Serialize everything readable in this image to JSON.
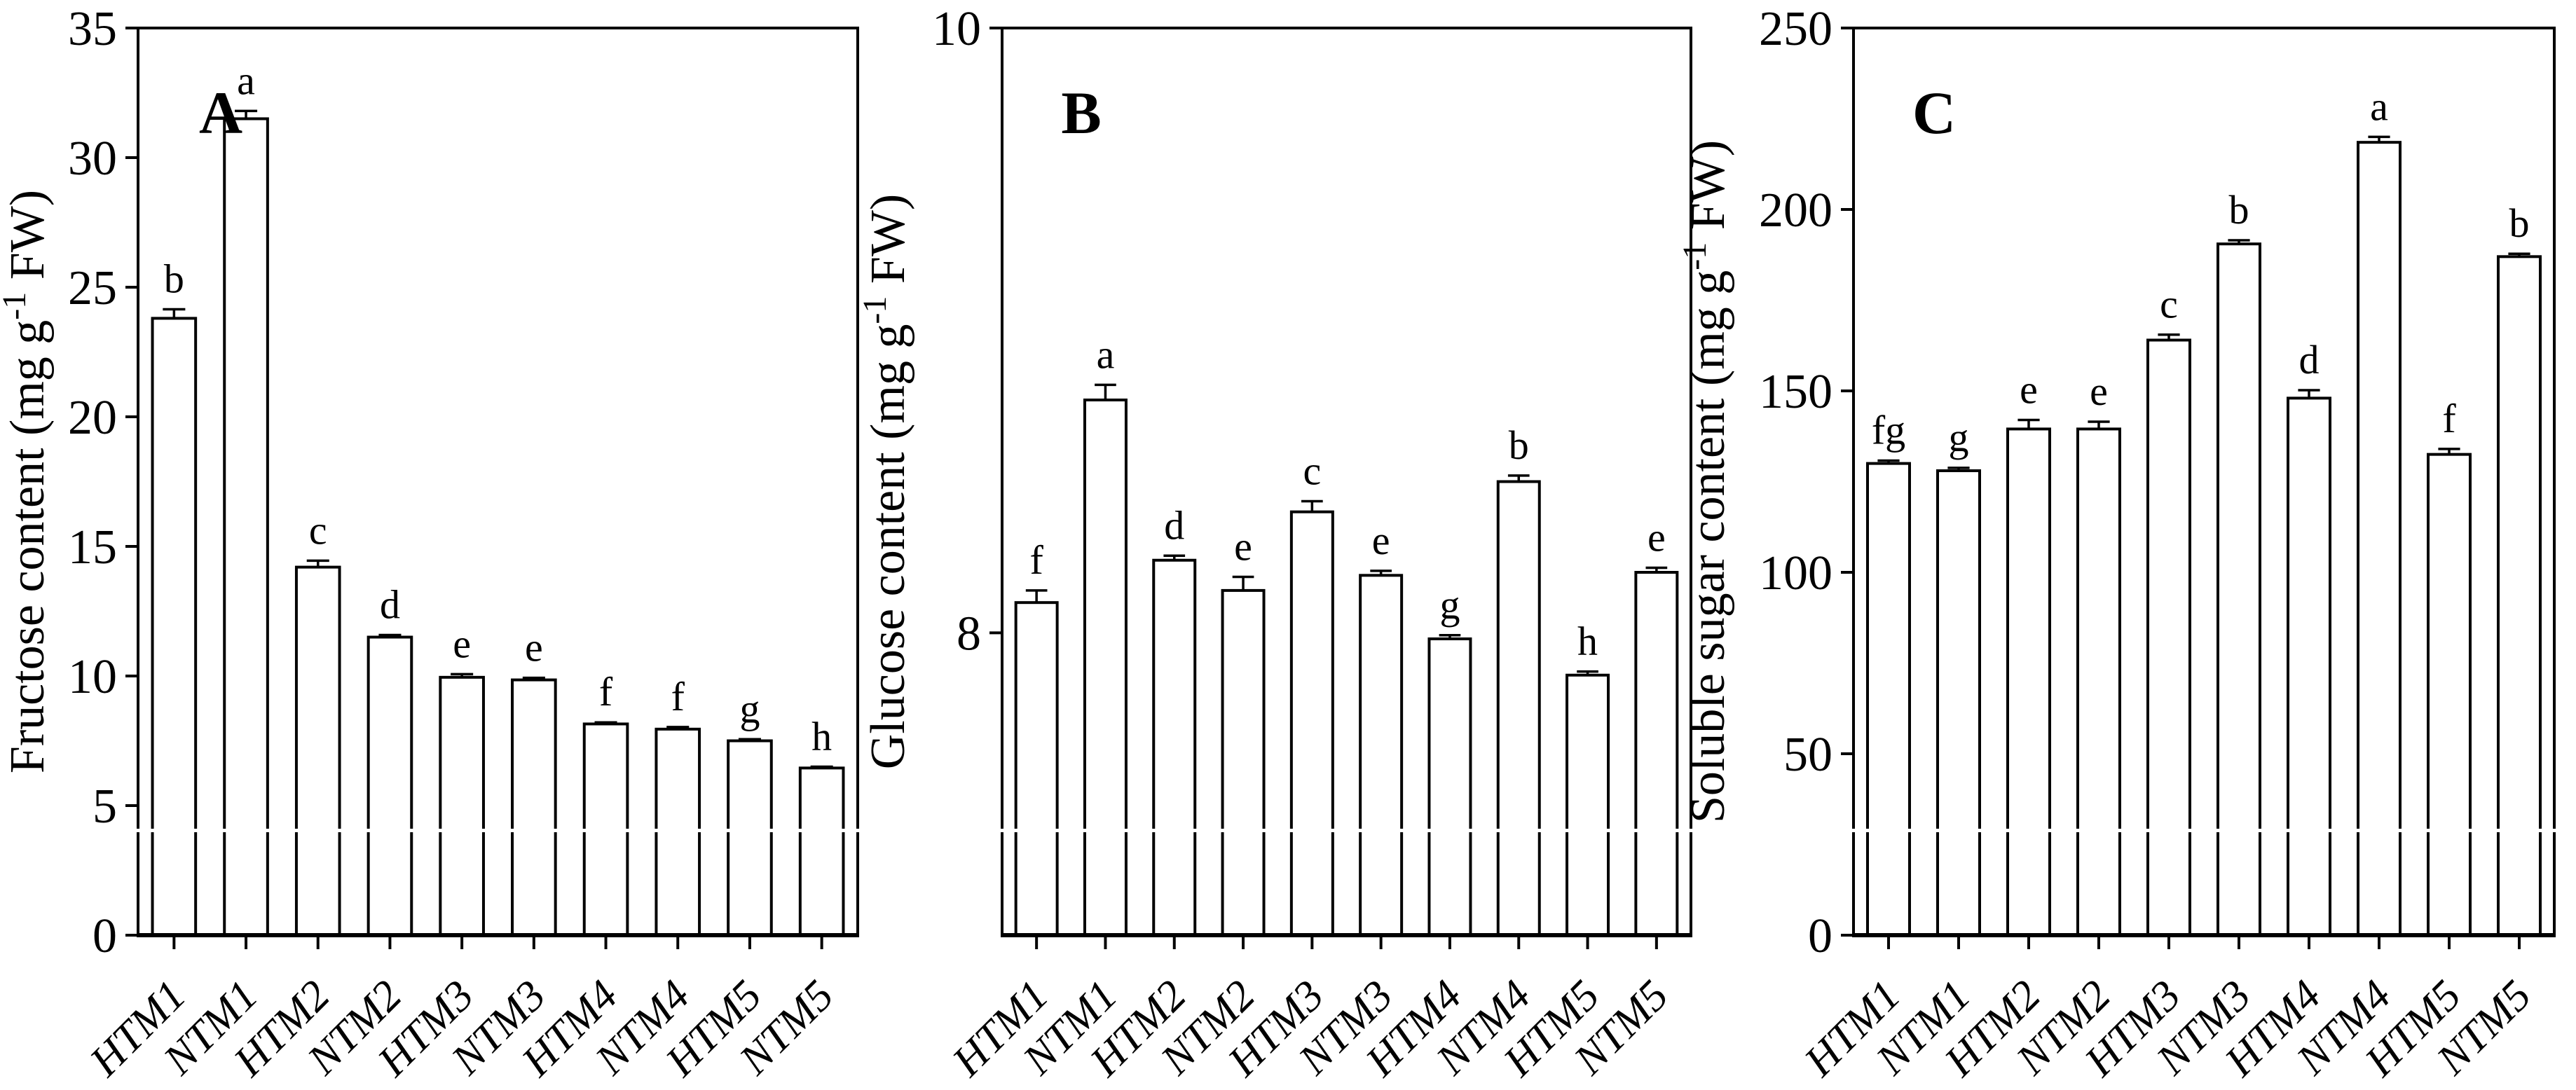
{
  "figure": {
    "background": "#ffffff",
    "colors": {
      "bar_fill": "#ffffff",
      "bar_stroke": "#000000",
      "text": "#000000"
    }
  },
  "chart_data": [
    {
      "type": "bar",
      "panel_label": "A",
      "ylabel": {
        "main": "Fructose content (mg g",
        "sup": "-1",
        "end": " FW)"
      },
      "ylim": [
        0,
        35
      ],
      "yticks": [
        0,
        5,
        10,
        15,
        20,
        25,
        30,
        35
      ],
      "categories": [
        "HTM1",
        "NTM1",
        "HTM2",
        "NTM2",
        "HTM3",
        "NTM3",
        "HTM4",
        "NTM4",
        "HTM5",
        "NTM5"
      ],
      "values": [
        23.8,
        31.5,
        14.2,
        11.5,
        9.95,
        9.85,
        8.15,
        7.95,
        7.5,
        6.45
      ],
      "errors": [
        0.35,
        0.3,
        0.25,
        0.08,
        0.12,
        0.08,
        0.06,
        0.08,
        0.06,
        0.05
      ],
      "letters": [
        "b",
        "a",
        "c",
        "d",
        "e",
        "e",
        "f",
        "f",
        "g",
        "h"
      ],
      "legend": null,
      "grid": false
    },
    {
      "type": "bar",
      "panel_label": "B",
      "ylabel": {
        "main": "Glucose content (mg g",
        "sup": "-1",
        "end": " FW)"
      },
      "ylim": [
        7,
        10
      ],
      "yticks": [
        8,
        10
      ],
      "categories": [
        "HTM1",
        "NTM1",
        "HTM2",
        "NTM2",
        "HTM3",
        "NTM3",
        "HTM4",
        "NTM4",
        "HTM5",
        "NTM5"
      ],
      "values": [
        8.1,
        8.77,
        8.24,
        8.14,
        8.4,
        8.19,
        7.98,
        8.5,
        7.86,
        8.2
      ],
      "errors": [
        0.04,
        0.05,
        0.015,
        0.045,
        0.035,
        0.015,
        0.012,
        0.02,
        0.012,
        0.015
      ],
      "letters": [
        "f",
        "a",
        "d",
        "e",
        "c",
        "e",
        "g",
        "b",
        "h",
        "e"
      ],
      "legend": null,
      "grid": false
    },
    {
      "type": "bar",
      "panel_label": "C",
      "ylabel": {
        "main": "Soluble sugar content (mg g",
        "sup": "-1",
        "end": " FW)"
      },
      "ylim": [
        0,
        250
      ],
      "yticks": [
        0,
        50,
        100,
        150,
        200,
        250
      ],
      "categories": [
        "HTM1",
        "NTM1",
        "HTM2",
        "NTM2",
        "HTM3",
        "NTM3",
        "HTM4",
        "NTM4",
        "HTM5",
        "NTM5"
      ],
      "values": [
        130,
        128,
        139.5,
        139.5,
        164,
        190.5,
        148,
        218.5,
        132.5,
        187
      ],
      "errors": [
        0.8,
        0.8,
        2.5,
        2.0,
        1.5,
        1.0,
        2.2,
        1.5,
        1.5,
        0.8
      ],
      "letters": [
        "fg",
        "g",
        "e",
        "e",
        "c",
        "b",
        "d",
        "a",
        "f",
        "b"
      ],
      "legend": null,
      "grid": false
    }
  ]
}
